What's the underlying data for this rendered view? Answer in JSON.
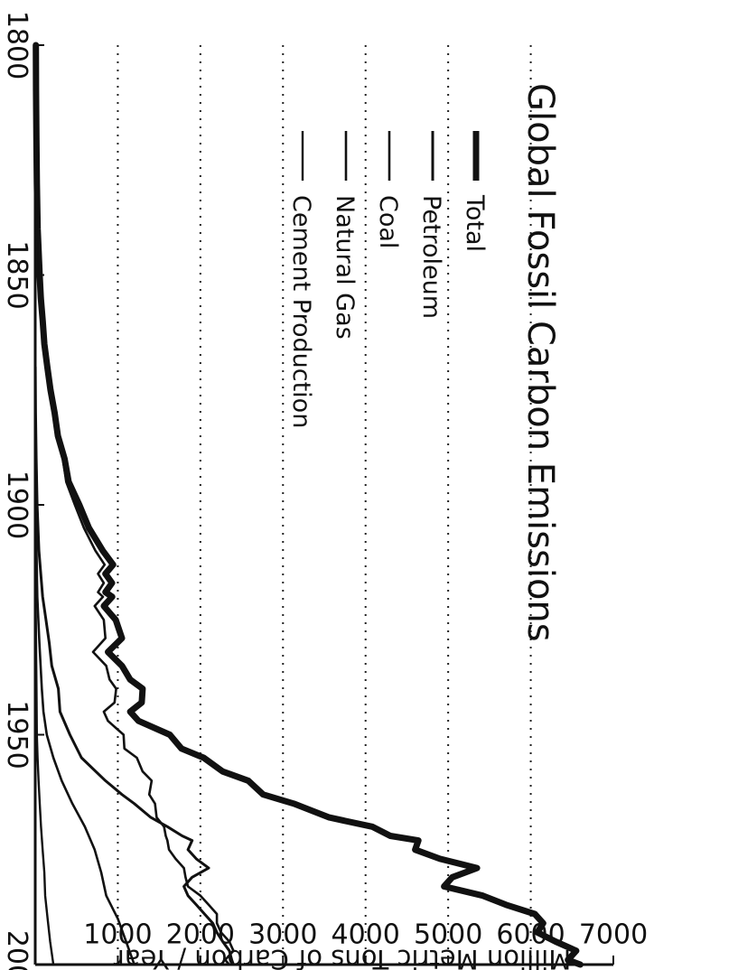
{
  "chart_data": {
    "type": "line",
    "title": "Global Fossil Carbon Emissions",
    "xlabel": "",
    "ylabel": "Million Metric Tons of Carbon / Year",
    "xlim": [
      1800,
      2000
    ],
    "ylim": [
      0,
      7000
    ],
    "xticks": [
      1800,
      1850,
      1900,
      1950,
      2000
    ],
    "yticks": [
      1000,
      2000,
      3000,
      4000,
      5000,
      6000,
      7000
    ],
    "grid": "horizontal-dotted",
    "legend": "top-left",
    "series": [
      {
        "name": "Total",
        "color": "#111111",
        "x": [
          1800,
          1810,
          1820,
          1830,
          1840,
          1850,
          1855,
          1860,
          1865,
          1870,
          1875,
          1880,
          1885,
          1890,
          1895,
          1900,
          1905,
          1910,
          1913,
          1915,
          1917,
          1919,
          1920,
          1922,
          1925,
          1929,
          1932,
          1935,
          1938,
          1940,
          1943,
          1945,
          1947,
          1950,
          1953,
          1955,
          1958,
          1960,
          1963,
          1965,
          1968,
          1970,
          1972,
          1973,
          1975,
          1977,
          1979,
          1981,
          1983,
          1985,
          1987,
          1989,
          1991,
          1993,
          1995,
          1997,
          1999,
          2000
        ],
        "y": [
          8,
          10,
          14,
          20,
          30,
          54,
          68,
          91,
          110,
          147,
          185,
          235,
          275,
          356,
          405,
          534,
          650,
          819,
          943,
          850,
          930,
          850,
          932,
          830,
          975,
          1050,
          880,
          1050,
          1150,
          1300,
          1290,
          1150,
          1250,
          1630,
          1770,
          2040,
          2270,
          2580,
          2760,
          3130,
          3560,
          4080,
          4300,
          4640,
          4600,
          4900,
          5350,
          5050,
          4950,
          5420,
          5700,
          6050,
          6150,
          6080,
          6300,
          6550,
          6450,
          6600
        ]
      },
      {
        "name": "Petroleum",
        "color": "#111111",
        "x": [
          1870,
          1880,
          1890,
          1900,
          1910,
          1920,
          1925,
          1930,
          1935,
          1940,
          1945,
          1950,
          1955,
          1960,
          1963,
          1965,
          1968,
          1970,
          1972,
          1973,
          1975,
          1977,
          1979,
          1981,
          1983,
          1985,
          1987,
          1989,
          1991,
          1993,
          1995,
          1997,
          1999,
          2000
        ],
        "y": [
          1,
          4,
          12,
          23,
          45,
          90,
          130,
          170,
          200,
          280,
          300,
          420,
          560,
          850,
          1050,
          1200,
          1400,
          1600,
          1780,
          1900,
          1850,
          1950,
          2100,
          1900,
          1800,
          1850,
          1950,
          2050,
          2150,
          2200,
          2270,
          2350,
          2380,
          2400
        ]
      },
      {
        "name": "Coal",
        "color": "#111111",
        "x": [
          1800,
          1810,
          1820,
          1830,
          1840,
          1850,
          1855,
          1860,
          1865,
          1870,
          1875,
          1880,
          1885,
          1890,
          1895,
          1900,
          1905,
          1910,
          1913,
          1915,
          1917,
          1919,
          1920,
          1922,
          1925,
          1929,
          1932,
          1935,
          1938,
          1940,
          1943,
          1945,
          1947,
          1950,
          1953,
          1955,
          1958,
          1960,
          1963,
          1965,
          1968,
          1970,
          1972,
          1973,
          1975,
          1977,
          1979,
          1981,
          1983,
          1985,
          1987,
          1989,
          1991,
          1993,
          1995,
          1997,
          1999,
          2000
        ],
        "y": [
          8,
          10,
          14,
          20,
          30,
          54,
          68,
          90,
          108,
          144,
          180,
          225,
          265,
          335,
          375,
          480,
          590,
          730,
          840,
          760,
          830,
          760,
          820,
          720,
          830,
          850,
          700,
          860,
          900,
          980,
          960,
          830,
          880,
          1070,
          1080,
          1230,
          1300,
          1410,
          1380,
          1450,
          1470,
          1560,
          1580,
          1600,
          1620,
          1700,
          1800,
          1820,
          1850,
          2000,
          2100,
          2200,
          2200,
          2250,
          2350,
          2400,
          2300,
          2350
        ]
      },
      {
        "name": "Natural Gas",
        "color": "#111111",
        "x": [
          1885,
          1890,
          1900,
          1910,
          1920,
          1930,
          1940,
          1945,
          1950,
          1955,
          1960,
          1965,
          1970,
          1975,
          1980,
          1985,
          1990,
          1995,
          2000
        ],
        "y": [
          2,
          5,
          10,
          15,
          25,
          50,
          80,
          100,
          140,
          220,
          320,
          450,
          600,
          720,
          800,
          860,
          1000,
          1100,
          1200
        ]
      },
      {
        "name": "Cement Production",
        "color": "#111111",
        "x": [
          1920,
          1930,
          1940,
          1950,
          1955,
          1960,
          1965,
          1970,
          1975,
          1980,
          1985,
          1990,
          1995,
          2000
        ],
        "y": [
          5,
          10,
          15,
          20,
          28,
          40,
          55,
          70,
          90,
          110,
          120,
          150,
          180,
          220
        ]
      }
    ]
  }
}
